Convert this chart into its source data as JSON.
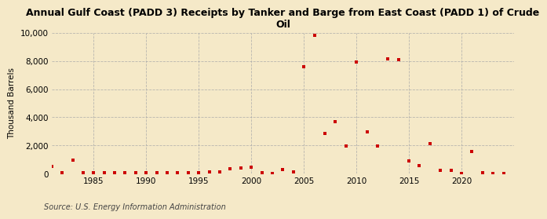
{
  "title": "Annual Gulf Coast (PADD 3) Receipts by Tanker and Barge from East Coast (PADD 1) of Crude\nOil",
  "ylabel": "Thousand Barrels",
  "source": "Source: U.S. Energy Information Administration",
  "background_color": "#f5e9c8",
  "plot_bg_color": "#f5e9c8",
  "marker_color": "#cc0000",
  "marker": "s",
  "marker_size": 3.5,
  "xlim": [
    1981,
    2025
  ],
  "ylim": [
    0,
    10000
  ],
  "yticks": [
    0,
    2000,
    4000,
    6000,
    8000,
    10000
  ],
  "xticks": [
    1985,
    1990,
    1995,
    2000,
    2005,
    2010,
    2015,
    2020
  ],
  "data": {
    "years": [
      1981,
      1982,
      1983,
      1984,
      1985,
      1986,
      1987,
      1988,
      1989,
      1990,
      1991,
      1992,
      1993,
      1994,
      1995,
      1996,
      1997,
      1998,
      1999,
      2000,
      2001,
      2002,
      2003,
      2004,
      2005,
      2006,
      2007,
      2008,
      2009,
      2010,
      2011,
      2012,
      2013,
      2014,
      2015,
      2016,
      2017,
      2018,
      2019,
      2020,
      2021,
      2022,
      2023,
      2024
    ],
    "values": [
      530,
      70,
      950,
      60,
      50,
      60,
      50,
      60,
      50,
      50,
      60,
      70,
      50,
      60,
      50,
      120,
      130,
      350,
      430,
      450,
      100,
      10,
      270,
      150,
      7600,
      9800,
      2850,
      3700,
      1950,
      7950,
      2950,
      1950,
      8150,
      8100,
      900,
      600,
      2150,
      220,
      230,
      30,
      1550,
      50,
      10,
      10
    ]
  },
  "grid_color": "#aaaaaa",
  "grid_linestyle": "--",
  "grid_alpha": 0.8,
  "title_fontsize": 9,
  "ylabel_fontsize": 7.5,
  "tick_fontsize": 7.5,
  "source_fontsize": 7
}
